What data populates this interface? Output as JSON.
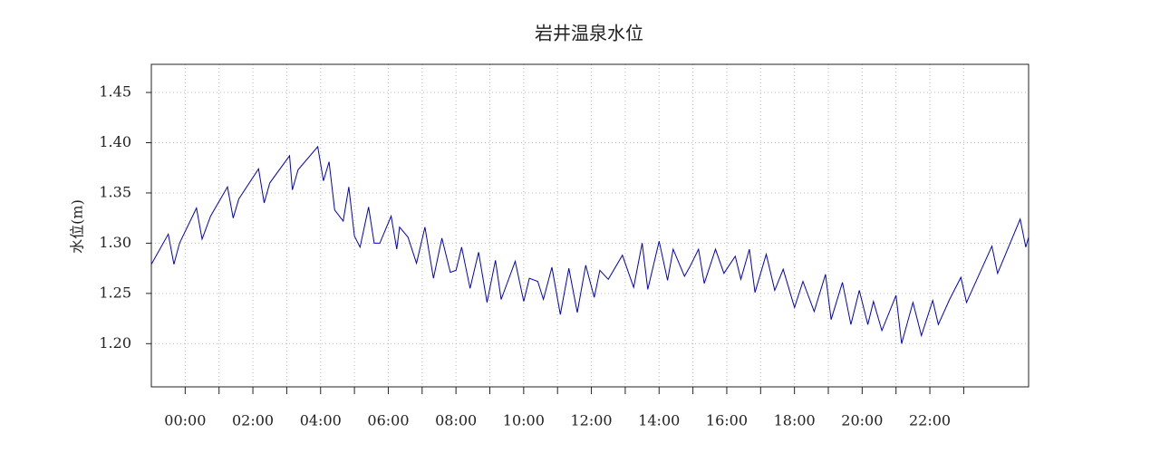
{
  "chart_data": {
    "type": "line",
    "title": "岩井温泉水位",
    "y_label": "水位(m)",
    "color": "#0000cc",
    "grid": true,
    "x": [
      -60,
      -30,
      -20,
      -10,
      20,
      30,
      45,
      75,
      85,
      95,
      130,
      140,
      150,
      185,
      190,
      200,
      235,
      245,
      255,
      265,
      280,
      290,
      300,
      310,
      325,
      335,
      345,
      365,
      375,
      380,
      395,
      410,
      425,
      440,
      455,
      470,
      480,
      490,
      505,
      520,
      535,
      550,
      560,
      585,
      600,
      610,
      625,
      635,
      650,
      665,
      680,
      695,
      710,
      725,
      735,
      750,
      775,
      795,
      810,
      820,
      840,
      855,
      865,
      885,
      895,
      910,
      920,
      940,
      955,
      975,
      985,
      1000,
      1010,
      1030,
      1045,
      1060,
      1080,
      1095,
      1115,
      1135,
      1145,
      1165,
      1180,
      1195,
      1210,
      1220,
      1235,
      1260,
      1270,
      1290,
      1305,
      1325,
      1335,
      1355,
      1375,
      1385,
      1430,
      1440,
      1480,
      1490,
      1495
    ],
    "values": [
      1.279,
      1.309,
      1.279,
      1.3,
      1.335,
      1.304,
      1.327,
      1.356,
      1.325,
      1.344,
      1.374,
      1.34,
      1.36,
      1.387,
      1.353,
      1.373,
      1.396,
      1.362,
      1.381,
      1.333,
      1.322,
      1.356,
      1.307,
      1.296,
      1.336,
      1.3,
      1.3,
      1.327,
      1.294,
      1.316,
      1.306,
      1.28,
      1.316,
      1.265,
      1.305,
      1.271,
      1.273,
      1.296,
      1.255,
      1.291,
      1.241,
      1.283,
      1.244,
      1.282,
      1.242,
      1.265,
      1.262,
      1.244,
      1.276,
      1.229,
      1.275,
      1.231,
      1.278,
      1.246,
      1.273,
      1.264,
      1.288,
      1.256,
      1.3,
      1.254,
      1.302,
      1.263,
      1.294,
      1.267,
      1.277,
      1.294,
      1.26,
      1.294,
      1.27,
      1.287,
      1.264,
      1.294,
      1.251,
      1.289,
      1.253,
      1.274,
      1.236,
      1.262,
      1.232,
      1.269,
      1.224,
      1.261,
      1.219,
      1.253,
      1.219,
      1.242,
      1.213,
      1.248,
      1.2,
      1.241,
      1.208,
      1.243,
      1.219,
      1.244,
      1.266,
      1.241,
      1.297,
      1.27,
      1.324,
      1.296,
      1.306
    ],
    "xlim": [
      -60,
      1495
    ],
    "xticks": [
      {
        "value": 0,
        "label": "00:00"
      },
      {
        "value": 120,
        "label": "02:00"
      },
      {
        "value": 240,
        "label": "04:00"
      },
      {
        "value": 360,
        "label": "06:00"
      },
      {
        "value": 480,
        "label": "08:00"
      },
      {
        "value": 600,
        "label": "10:00"
      },
      {
        "value": 720,
        "label": "12:00"
      },
      {
        "value": 840,
        "label": "14:00"
      },
      {
        "value": 960,
        "label": "16:00"
      },
      {
        "value": 1080,
        "label": "18:00"
      },
      {
        "value": 1200,
        "label": "20:00"
      },
      {
        "value": 1320,
        "label": "22:00"
      }
    ],
    "xminor_ticks": [
      60,
      180,
      300,
      420,
      540,
      660,
      780,
      900,
      1020,
      1140,
      1260,
      1380
    ],
    "ylim": [
      1.157,
      1.478
    ],
    "yticks": [
      {
        "value": 1.2,
        "label": "1.20"
      },
      {
        "value": 1.25,
        "label": "1.25"
      },
      {
        "value": 1.3,
        "label": "1.30"
      },
      {
        "value": 1.35,
        "label": "1.35"
      },
      {
        "value": 1.4,
        "label": "1.40"
      },
      {
        "value": 1.45,
        "label": "1.45"
      }
    ]
  }
}
